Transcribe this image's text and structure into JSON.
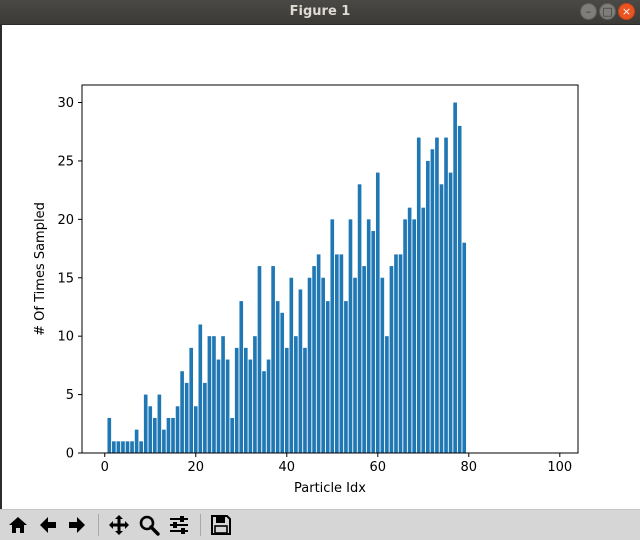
{
  "window": {
    "title": "Figure 1"
  },
  "chart_data": {
    "type": "bar",
    "title": "",
    "xlabel": "Particle Idx",
    "ylabel": "# Of Times Sampled",
    "xlim": [
      -5,
      104
    ],
    "ylim": [
      0,
      31.5
    ],
    "xticks": [
      0,
      20,
      40,
      60,
      80,
      100
    ],
    "yticks": [
      0,
      5,
      10,
      15,
      20,
      25,
      30
    ],
    "bar_width": 0.8,
    "bar_color": "#1f77b4",
    "grid": false,
    "x": [
      0,
      1,
      2,
      3,
      4,
      5,
      6,
      7,
      8,
      9,
      10,
      11,
      12,
      13,
      14,
      15,
      16,
      17,
      18,
      19,
      20,
      21,
      22,
      23,
      24,
      25,
      26,
      27,
      28,
      29,
      30,
      31,
      32,
      33,
      34,
      35,
      36,
      37,
      38,
      39,
      40,
      41,
      42,
      43,
      44,
      45,
      46,
      47,
      48,
      49,
      50,
      51,
      52,
      53,
      54,
      55,
      56,
      57,
      58,
      59,
      60,
      61,
      62,
      63,
      64,
      65,
      66,
      67,
      68,
      69,
      70,
      71,
      72,
      73,
      74,
      75,
      76,
      77,
      78,
      79
    ],
    "values": [
      0,
      3,
      1,
      1,
      1,
      1,
      1,
      2,
      1,
      5,
      4,
      3,
      5,
      2,
      3,
      3,
      4,
      7,
      6,
      9,
      4,
      11,
      6,
      10,
      10,
      8,
      10,
      8,
      3,
      9,
      13,
      9,
      8,
      10,
      16,
      7,
      8,
      16,
      13,
      12,
      9,
      15,
      10,
      14,
      9,
      15,
      16,
      17,
      15,
      13,
      20,
      17,
      17,
      13,
      20,
      15,
      23,
      16,
      20,
      19,
      24,
      15,
      10,
      16,
      17,
      17,
      20,
      21,
      20,
      27,
      21,
      25,
      26,
      27,
      23,
      27,
      24,
      30,
      28,
      18
    ]
  },
  "toolbar": {
    "icons": [
      "home-icon",
      "back-arrow-icon",
      "forward-arrow-icon",
      "move-icon",
      "zoom-icon",
      "configure-subplots-icon",
      "save-icon"
    ]
  }
}
